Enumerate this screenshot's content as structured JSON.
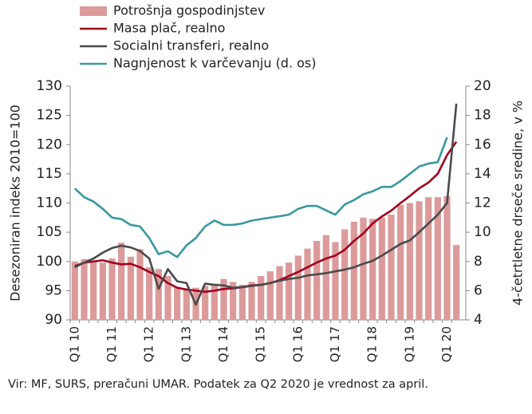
{
  "chart_data": {
    "type": "bar-line",
    "categories": [
      "Q1 10",
      null,
      null,
      null,
      "Q1 11",
      null,
      null,
      null,
      "Q1 12",
      null,
      null,
      null,
      "Q1 13",
      null,
      null,
      null,
      "Q1 14",
      null,
      null,
      null,
      "Q1 15",
      null,
      null,
      null,
      "Q1 16",
      null,
      null,
      null,
      "Q1 17",
      null,
      null,
      null,
      "Q1 18",
      null,
      null,
      null,
      "Q1 19",
      null,
      null,
      null,
      "Q1 20",
      null
    ],
    "series": [
      {
        "name": "Potrošnja gospodinjstev",
        "type": "bar",
        "color": "#dc9a9a",
        "values": [
          100,
          100.4,
          100,
          99.8,
          100.5,
          103.2,
          100.8,
          102.1,
          99,
          98.7,
          97.5,
          95.5,
          95.2,
          95.5,
          95.8,
          96.2,
          97,
          96.5,
          96,
          96.5,
          97.5,
          98.3,
          99.2,
          99.8,
          101,
          102.2,
          103.5,
          104.5,
          103.3,
          105.5,
          106.8,
          107.5,
          107.3,
          107.5,
          108,
          109.7,
          110,
          110.3,
          111,
          111,
          111.2,
          102.8
        ]
      },
      {
        "name": "Masa plač, realno",
        "type": "line",
        "color": "#a3001e",
        "values": [
          99.2,
          99.8,
          100,
          100.2,
          99.8,
          99.5,
          99.6,
          99.0,
          98.2,
          97.5,
          96.3,
          95.5,
          95.2,
          95.0,
          94.8,
          95.0,
          95.3,
          95.4,
          95.6,
          95.9,
          96.0,
          96.3,
          96.8,
          97.5,
          98.2,
          99,
          99.8,
          100.5,
          101,
          102,
          103.5,
          104.8,
          106.5,
          107.7,
          108.7,
          110,
          111.2,
          112.5,
          113.5,
          115,
          118.2,
          120.5
        ]
      },
      {
        "name": "Socialni transferi, realno",
        "type": "line",
        "color": "#4a4a4a",
        "values": [
          99.0,
          99.8,
          100.5,
          101.5,
          102.3,
          102.7,
          102.4,
          101.8,
          100.5,
          95.3,
          98.7,
          96.6,
          96.3,
          92.6,
          96.2,
          96.0,
          95.9,
          95.5,
          95.6,
          95.8,
          96.0,
          96.3,
          96.7,
          97.0,
          97.2,
          97.6,
          97.8,
          98.0,
          98.3,
          98.6,
          99.0,
          99.6,
          100.1,
          101.0,
          102.0,
          103.0,
          103.6,
          105.0,
          106.5,
          108.0,
          110.0,
          127
        ]
      },
      {
        "name": "Nagnjenost k varčevanju (d. os)",
        "type": "line",
        "axis": "y2",
        "color": "#3a989e",
        "values": [
          13,
          12.4,
          12.1,
          11.6,
          11.0,
          10.9,
          10.5,
          10.4,
          9.6,
          8.5,
          8.7,
          8.3,
          9.1,
          9.6,
          10.4,
          10.8,
          10.5,
          10.5,
          10.6,
          10.8,
          10.9,
          11.0,
          11.1,
          11.2,
          11.6,
          11.8,
          11.8,
          11.5,
          11.2,
          11.9,
          12.2,
          12.6,
          12.8,
          13.1,
          13.1,
          13.5,
          14.0,
          14.5,
          14.7,
          14.8,
          16.5,
          null
        ]
      }
    ],
    "y_label": "Desezoniran indeks 2010=100",
    "y2_label": "4-četrtletne drseče sredine, v %",
    "ylim": [
      90,
      130
    ],
    "yticks": [
      90,
      95,
      100,
      105,
      110,
      115,
      120,
      125,
      130
    ],
    "y2lim": [
      4,
      20
    ],
    "y2ticks": [
      4,
      6,
      8,
      10,
      12,
      14,
      16,
      18,
      20
    ],
    "note": "Vir: MF, SURS, preračuni UMAR. Podatek za Q2 2020 je vrednost za april."
  }
}
